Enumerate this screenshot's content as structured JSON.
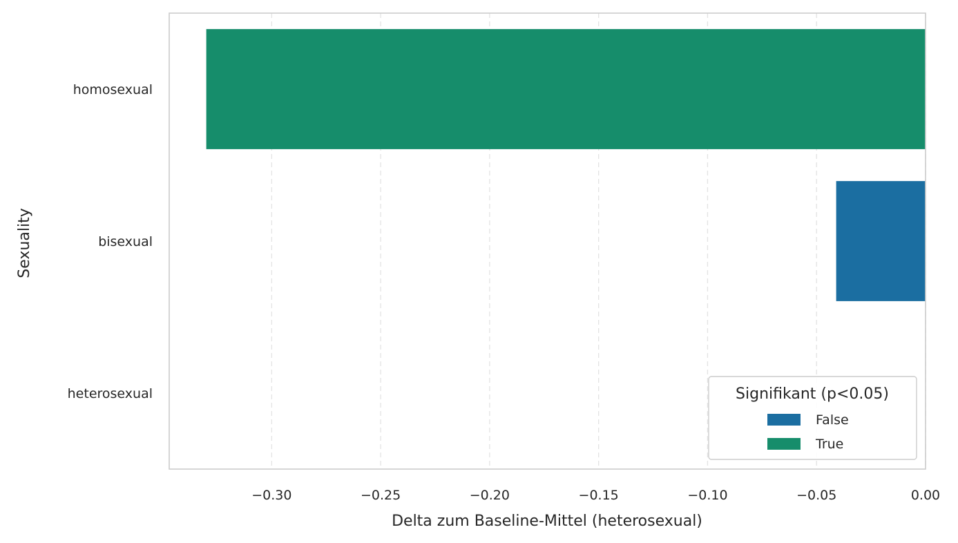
{
  "chart_data": {
    "type": "bar",
    "orientation": "horizontal",
    "categories": [
      "homosexual",
      "bisexual",
      "heterosexual"
    ],
    "values": [
      -0.33,
      -0.041,
      0.0
    ],
    "significant": [
      true,
      false,
      false
    ],
    "xlabel": "Delta zum Baseline-Mittel (heterosexual)",
    "ylabel": "Sexuality",
    "xlim": [
      -0.347,
      0.0
    ],
    "xticks": [
      -0.3,
      -0.25,
      -0.2,
      -0.15,
      -0.1,
      -0.05,
      0.0
    ],
    "xtick_labels": [
      "−0.30",
      "−0.25",
      "−0.20",
      "−0.15",
      "−0.10",
      "−0.05",
      "0.00"
    ],
    "grid": "x-dashed",
    "legend": {
      "title": "Signifikant (p<0.05)",
      "placement": "lower-right",
      "entries": [
        {
          "label": "False",
          "color": "#1b6ea1"
        },
        {
          "label": "True",
          "color": "#168d6b"
        }
      ]
    },
    "colors": {
      "False": "#1b6ea1",
      "True": "#168d6b"
    }
  }
}
